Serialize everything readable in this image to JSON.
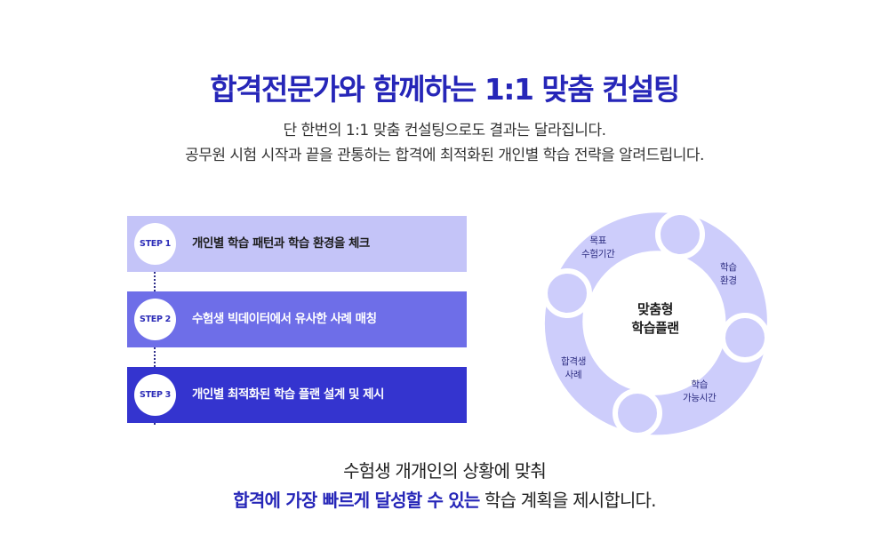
{
  "header": {
    "title": "합격전문가와 함께하는 1:1 맞춤 컨설팅",
    "desc_line1": "단 한번의 1:1 맞춤 컨설팅으로도 결과는 달라집니다.",
    "desc_line2": "공무원 시험 시작과 끝을 관통하는 합격에 최적화된 개인별 학습 전략을 알려드립니다."
  },
  "steps": [
    {
      "badge": "STEP 1",
      "label": "개인별 학습 패턴과 학습 환경을 체크",
      "color": "#c4c4f8"
    },
    {
      "badge": "STEP 2",
      "label": "수험생 빅데이터에서 유사한 사례 매칭",
      "color": "#6e6ee8"
    },
    {
      "badge": "STEP 3",
      "label": "개인별 최적화된 학습 플랜 설계 및 제시",
      "color": "#3434cf"
    }
  ],
  "cycle": {
    "center_line1": "맞춤형",
    "center_line2": "학습플랜",
    "segments": [
      {
        "line1": "목표",
        "line2": "수험기간"
      },
      {
        "line1": "학습",
        "line2": "환경"
      },
      {
        "line1": "학습",
        "line2": "가능시간"
      },
      {
        "line1": "합격생",
        "line2": "사례"
      }
    ],
    "ring_color": "#cdcdfb"
  },
  "summary": {
    "line1": "수험생 개개인의 상황에 맞춰",
    "line2_highlight": "합격에 가장 빠르게 달성할 수 있는",
    "line2_rest": " 학습 계획을 제시합니다."
  }
}
